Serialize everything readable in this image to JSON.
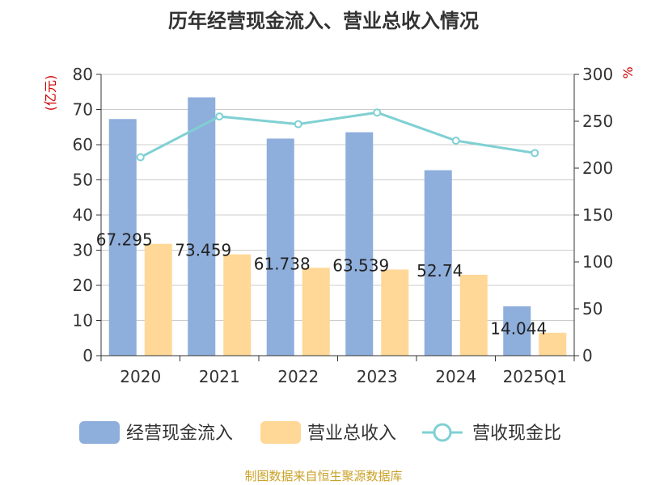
{
  "chart_data": {
    "type": "bar",
    "title": "历年经营现金流入、营业总收入情况",
    "source": "制图数据来自恒生聚源数据库",
    "categories": [
      "2020",
      "2021",
      "2022",
      "2023",
      "2024",
      "2025Q1"
    ],
    "left_axis": {
      "unit": "(亿元)",
      "ylim": [
        0,
        80
      ],
      "ticks": [
        0,
        10,
        20,
        30,
        40,
        50,
        60,
        70,
        80
      ]
    },
    "right_axis": {
      "unit": "%",
      "ylim": [
        0,
        300
      ],
      "ticks": [
        0,
        50,
        100,
        150,
        200,
        250,
        300
      ]
    },
    "series": [
      {
        "name": "经营现金流入",
        "kind": "bar",
        "axis": "left",
        "color": "#8eaedc",
        "values": [
          67.295,
          73.459,
          61.738,
          63.539,
          52.74,
          14.044
        ],
        "labels": [
          "67.295",
          "73.459",
          "61.738",
          "63.539",
          "52.74",
          "14.044"
        ]
      },
      {
        "name": "营业总收入",
        "kind": "bar",
        "axis": "left",
        "color": "#ffd897",
        "values": [
          31.8,
          28.8,
          25.0,
          24.5,
          23.0,
          6.5
        ]
      },
      {
        "name": "营收现金比",
        "kind": "line",
        "axis": "right",
        "color": "#7fd0d3",
        "values": [
          211.6,
          255.1,
          246.9,
          259.3,
          229.3,
          216.1
        ]
      }
    ],
    "grid": true,
    "legend_position": "bottom"
  },
  "colors": {
    "title": "#333333",
    "unit": "#d00000",
    "source": "#c9a227",
    "grid": "#cccccc",
    "axis": "#333333"
  }
}
